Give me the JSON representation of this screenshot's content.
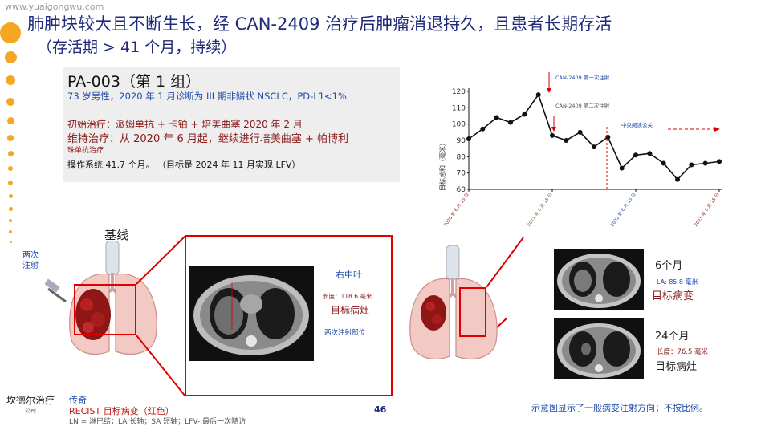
{
  "watermark": "www.yuaigongwu.com",
  "title": {
    "line1": "肺肿块较大且不断生长，经 CAN-2409 治疗后肿瘤消退持久，且患者长期存活",
    "line2": "（存活期 > 41 个月，持续）"
  },
  "case": {
    "id": "PA-003（第 1 组）",
    "patient": "73 岁男性，2020 年 1 月诊断为 III 期非鳞状 NSCLC，PD-L1<1%",
    "initial_treatment": "初始治疗：派姆单抗 + 卡铂 + 培美曲塞 2020 年 2 月",
    "maintenance": "维持治疗：从 2020 年 6 月起，继续进行培美曲塞 + 帕博利",
    "maintenance_cont": "珠单抗治疗",
    "operating_system": "操作系统 41.7 个月。 （目标是 2024 年 11 月实现 LFV）"
  },
  "chart_data": {
    "type": "line",
    "ylabel": "目标总和（毫米）",
    "ylim": [
      60,
      120
    ],
    "yticks": [
      60,
      70,
      80,
      90,
      100,
      110,
      120
    ],
    "x": [
      0,
      1,
      2,
      3,
      4,
      5,
      6,
      7,
      8,
      9,
      10,
      11,
      12,
      13,
      14,
      15,
      16,
      17,
      18
    ],
    "values": [
      91,
      97,
      104,
      101,
      106,
      118,
      93,
      90,
      95,
      86,
      92,
      73,
      81,
      82,
      76,
      66,
      75,
      76,
      77
    ],
    "xtick_labels": [
      {
        "at": 0,
        "label": "2020 年 6 月 15 日",
        "color": "#8b1a1a"
      },
      {
        "at": 6,
        "label": "2021 年 6 月 15 日",
        "color": "#4f7a28"
      },
      {
        "at": 12,
        "label": "2022 年 6 月 15 日",
        "color": "#1f4aa8"
      },
      {
        "at": 18,
        "label": "2023 年 6 月 15 日",
        "color": "#8b1a1a"
      }
    ],
    "annotations": [
      {
        "text": "CAN-2409 第一次注射",
        "color": "#1f4aa8"
      },
      {
        "text": "CAN-2409 第二次注射",
        "color": "#555555"
      },
      {
        "text": "中央阅读公关",
        "color": "#1f4aa8"
      }
    ]
  },
  "baseline_label": "基线",
  "two_injections": [
    "两次",
    "注射"
  ],
  "ct_scans": [
    {
      "region": "右中叶",
      "length": "长度：118.6 毫米",
      "target": "目标病灶",
      "site": "两次注射部位"
    },
    {
      "time": "6个月",
      "size": "LA: 85.8 毫米",
      "target": "目标病变"
    },
    {
      "time": "24个月",
      "size": "长度：76.5 毫米",
      "target": "目标病灶"
    }
  ],
  "legend": {
    "title": "传奇",
    "recist": "RECIST 目标病变（红色）",
    "abbr": "LN = 淋巴结；LA 长轴；SA 短轴；LFV- 最后一次随访"
  },
  "page_number": "46",
  "footnote": "示意图显示了一般病变注射方向；不按比例。",
  "logo": {
    "name": "坎德尔治疗",
    "sub": "公司"
  },
  "colors": {
    "accent_orange": "#f5a623",
    "title_blue": "#1f2a7a",
    "red_box": "#e00000"
  }
}
